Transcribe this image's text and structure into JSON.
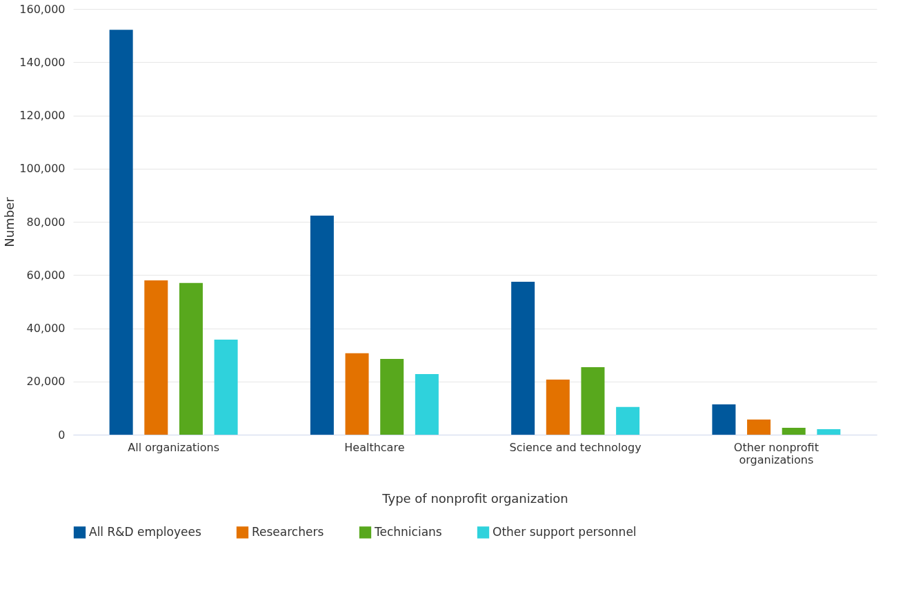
{
  "chart_data": {
    "type": "bar",
    "xlabel": "Type of nonprofit organization",
    "ylabel": "Number",
    "categories": [
      "All organizations",
      "Healthcare",
      "Science and technology",
      "Other nonprofit organizations"
    ],
    "series": [
      {
        "name": "All R&D employees",
        "color": "#00589c",
        "values": [
          152200,
          82300,
          57500,
          11400
        ]
      },
      {
        "name": "Researchers",
        "color": "#e37200",
        "values": [
          58000,
          30600,
          20700,
          5700
        ]
      },
      {
        "name": "Technicians",
        "color": "#58a81d",
        "values": [
          57000,
          28500,
          25400,
          2600
        ]
      },
      {
        "name": "Other support personnel",
        "color": "#2fd2dc",
        "values": [
          35700,
          22800,
          10400,
          2100
        ]
      }
    ],
    "ylim": [
      0,
      160000
    ],
    "yticks": [
      0,
      {
        "value": 20000,
        "label": "20,000"
      },
      {
        "value": 40000,
        "label": "40,000"
      },
      {
        "value": 60000,
        "label": "60,000"
      },
      {
        "value": 80000,
        "label": "80,000"
      },
      {
        "value": 100000,
        "label": "100,000"
      },
      {
        "value": 120000,
        "label": "120,000"
      },
      {
        "value": 140000,
        "label": "140,000"
      },
      {
        "value": 160000,
        "label": "160,000"
      }
    ],
    "grid": "y",
    "legend": "bottom"
  }
}
